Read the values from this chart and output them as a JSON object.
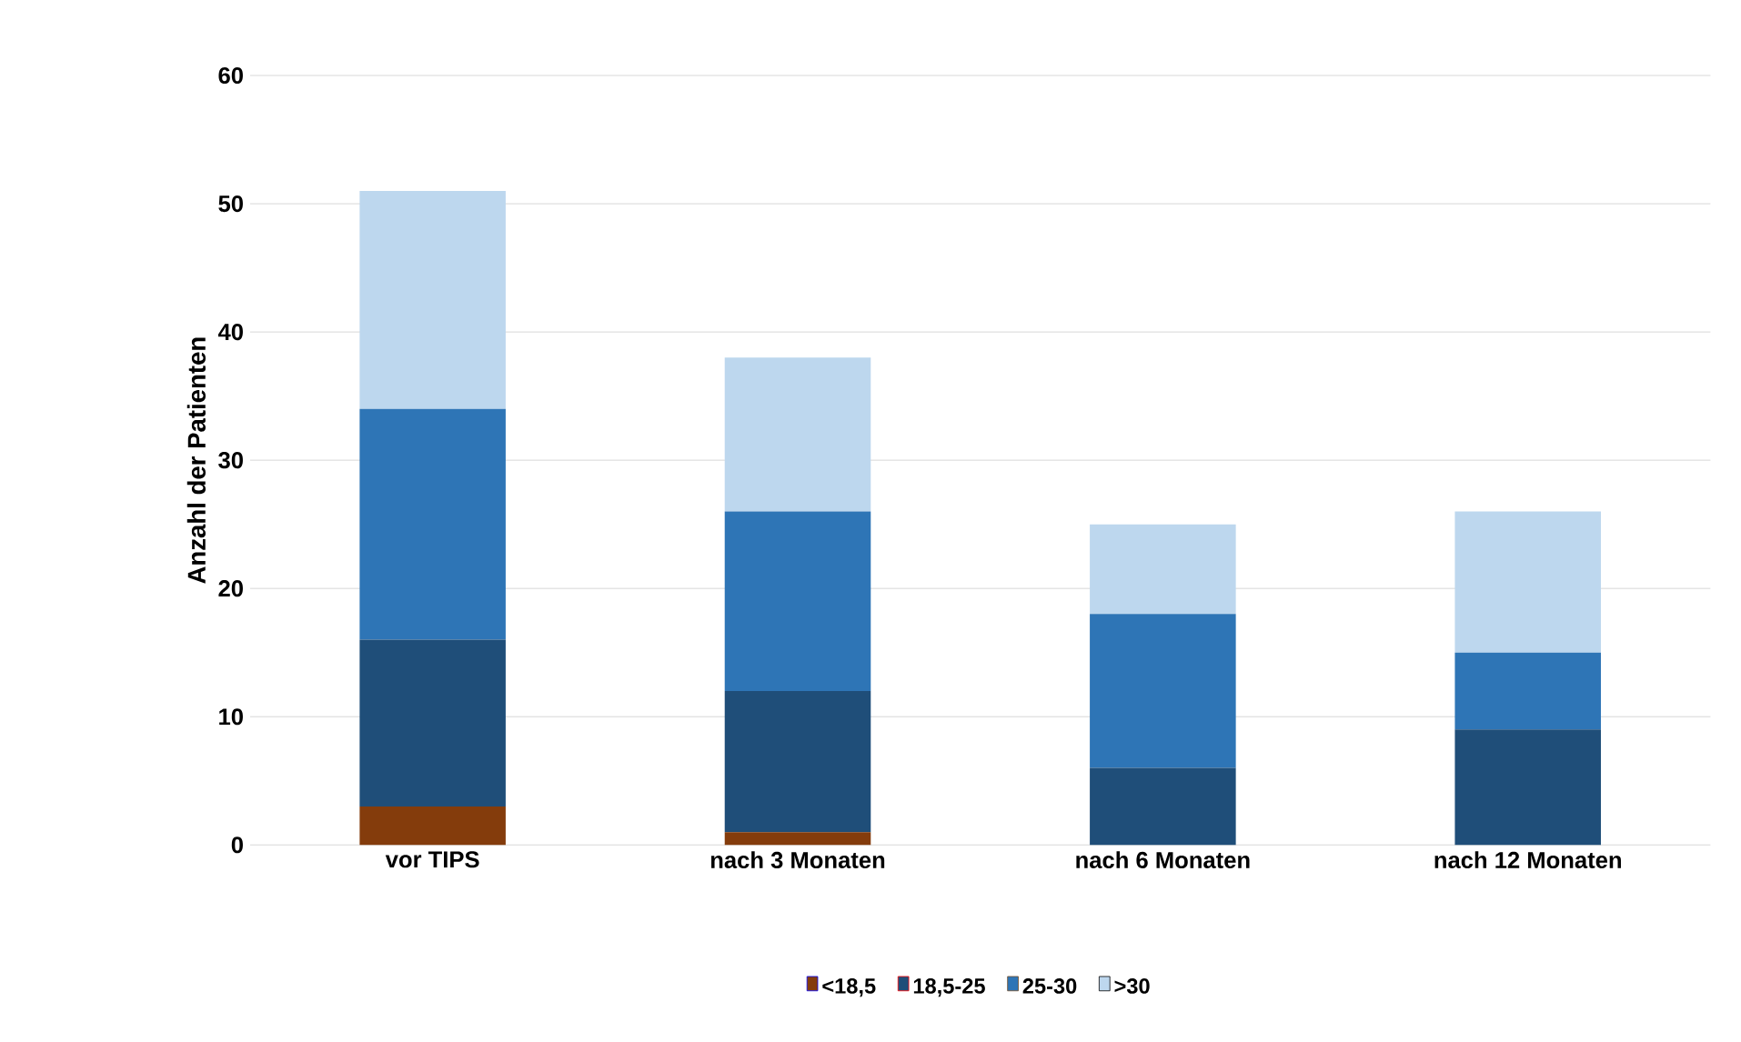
{
  "chart_data": {
    "type": "bar",
    "stacked": true,
    "ylabel": "Anzahl der Patienten",
    "categories": [
      "vor TIPS",
      "nach 3 Monaten",
      "nach 6 Monaten",
      "nach 12 Monaten"
    ],
    "series": [
      {
        "name": "<18,5",
        "color": "#843c0c",
        "values": [
          3,
          1,
          0,
          0
        ]
      },
      {
        "name": "18,5-25",
        "color": "#1f4e79",
        "values": [
          13,
          11,
          6,
          9
        ]
      },
      {
        "name": "25-30",
        "color": "#2e75b6",
        "values": [
          18,
          14,
          12,
          6
        ]
      },
      {
        "name": ">30",
        "color": "#bdd7ee",
        "values": [
          17,
          12,
          7,
          11
        ]
      }
    ],
    "ylim": [
      0,
      60
    ],
    "yticks": [
      0,
      10,
      20,
      30,
      40,
      50,
      60
    ],
    "grid": "y",
    "legend": "bottom"
  }
}
